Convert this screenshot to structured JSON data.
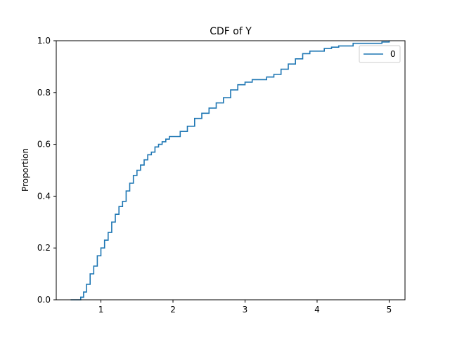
{
  "chart_data": {
    "type": "line",
    "title": "CDF of Y",
    "xlabel": "",
    "ylabel": "Proportion",
    "xlim": [
      0.38,
      5.22
    ],
    "ylim": [
      0.0,
      1.0
    ],
    "xticks": [
      1,
      2,
      3,
      4,
      5
    ],
    "yticks": [
      0.0,
      0.2,
      0.4,
      0.6,
      0.8,
      1.0
    ],
    "xtick_labels": [
      "1",
      "2",
      "3",
      "4",
      "5"
    ],
    "ytick_labels": [
      "0.0",
      "0.2",
      "0.4",
      "0.6",
      "0.8",
      "1.0"
    ],
    "grid": false,
    "legend_position": "top-right",
    "legend": [
      "0"
    ],
    "series": [
      {
        "name": "0",
        "color": "#1f77b4",
        "x": [
          0.58,
          0.68,
          0.72,
          0.76,
          0.8,
          0.85,
          0.9,
          0.95,
          1.0,
          1.05,
          1.1,
          1.15,
          1.2,
          1.25,
          1.3,
          1.35,
          1.4,
          1.45,
          1.5,
          1.55,
          1.6,
          1.65,
          1.7,
          1.75,
          1.8,
          1.85,
          1.9,
          1.95,
          2.0,
          2.1,
          2.2,
          2.3,
          2.4,
          2.5,
          2.6,
          2.7,
          2.8,
          2.9,
          3.0,
          3.1,
          3.2,
          3.3,
          3.4,
          3.5,
          3.6,
          3.7,
          3.8,
          3.9,
          4.0,
          4.1,
          4.2,
          4.3,
          4.5,
          4.7,
          4.9,
          5.0
        ],
        "y": [
          0.0,
          0.0,
          0.01,
          0.03,
          0.06,
          0.1,
          0.13,
          0.17,
          0.2,
          0.23,
          0.26,
          0.3,
          0.33,
          0.36,
          0.38,
          0.42,
          0.45,
          0.48,
          0.5,
          0.52,
          0.54,
          0.56,
          0.57,
          0.59,
          0.6,
          0.61,
          0.62,
          0.63,
          0.63,
          0.65,
          0.67,
          0.7,
          0.72,
          0.74,
          0.76,
          0.78,
          0.81,
          0.83,
          0.84,
          0.85,
          0.85,
          0.86,
          0.87,
          0.89,
          0.91,
          0.93,
          0.95,
          0.96,
          0.96,
          0.97,
          0.975,
          0.98,
          0.99,
          0.99,
          0.995,
          1.0
        ]
      }
    ]
  }
}
